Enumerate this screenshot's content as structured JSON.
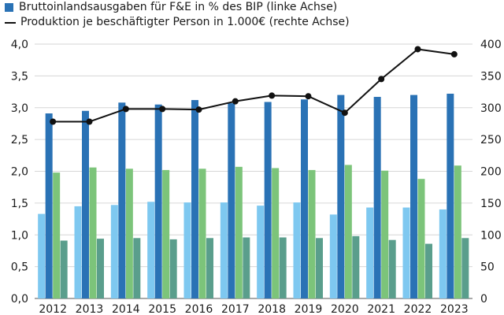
{
  "legend": {
    "items": [
      {
        "label": "Bruttoinlandsausgaben für F&E in % des BIP (linke Achse)",
        "marker": "square",
        "color": "#2a72b5"
      },
      {
        "label": "Produktion je beschäftigter Person in 1.000€ (rechte Achse)",
        "marker": "line",
        "color": "#111111"
      }
    ]
  },
  "chart_data": {
    "type": "bar",
    "categories": [
      "2012",
      "2013",
      "2014",
      "2015",
      "2016",
      "2017",
      "2018",
      "2019",
      "2020",
      "2021",
      "2022",
      "2023"
    ],
    "y_left": {
      "ylim": [
        0,
        4
      ],
      "ticks": [
        "0,0",
        "0,5",
        "1,0",
        "1,5",
        "2,0",
        "2,5",
        "3,0",
        "3,5",
        "4,0"
      ]
    },
    "y_right": {
      "ylim": [
        0,
        400
      ],
      "ticks": [
        "0",
        "50",
        "100",
        "150",
        "200",
        "250",
        "300",
        "350",
        "400"
      ]
    },
    "series": [
      {
        "name": "Bruttoinlandsausgaben für F&E in % des BIP (linke Achse)",
        "type": "bar",
        "axis": "left",
        "color": "#2a72b5",
        "values": [
          2.91,
          2.95,
          3.08,
          3.05,
          3.12,
          3.07,
          3.09,
          3.13,
          3.2,
          3.17,
          3.2,
          3.22
        ]
      },
      {
        "type": "bar",
        "axis": "left",
        "color": "#7ec8f0",
        "values": [
          1.33,
          1.45,
          1.47,
          1.52,
          1.51,
          1.51,
          1.46,
          1.51,
          1.32,
          1.43,
          1.43,
          1.4
        ]
      },
      {
        "type": "bar",
        "axis": "left",
        "color": "#7cc47a",
        "values": [
          1.98,
          2.06,
          2.04,
          2.02,
          2.04,
          2.07,
          2.05,
          2.02,
          2.1,
          2.01,
          1.88,
          2.09
        ]
      },
      {
        "type": "bar",
        "axis": "left",
        "color": "#5a9e8c",
        "values": [
          0.91,
          0.94,
          0.95,
          0.93,
          0.95,
          0.96,
          0.96,
          0.95,
          0.98,
          0.92,
          0.86,
          0.95
        ]
      },
      {
        "name": "Produktion je beschäftigter Person in 1.000€ (rechte Achse)",
        "type": "line",
        "axis": "right",
        "color": "#111111",
        "values": [
          278,
          278,
          298,
          298,
          297,
          310,
          319,
          318,
          292,
          345,
          392,
          384
        ]
      }
    ],
    "grid": true
  }
}
